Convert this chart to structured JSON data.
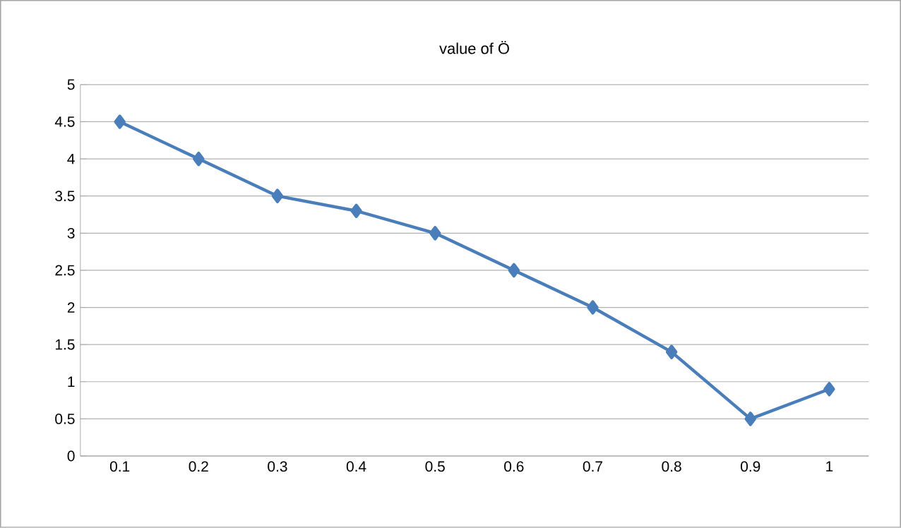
{
  "chart_data": {
    "type": "line",
    "title": "value of Ö",
    "categories": [
      "0.1",
      "0.2",
      "0.3",
      "0.4",
      "0.5",
      "0.6",
      "0.7",
      "0.8",
      "0.9",
      "1"
    ],
    "values": [
      4.5,
      4,
      3.5,
      3.3,
      3,
      2.5,
      2,
      1.4,
      0.5,
      0.9
    ],
    "color": "#4a7ebb",
    "marker": "diamond",
    "line_style": "solid",
    "ylim": [
      0,
      5
    ],
    "yticks": [
      0,
      0.5,
      1,
      1.5,
      2,
      2.5,
      3,
      3.5,
      4,
      4.5,
      5
    ],
    "grid": "y"
  }
}
